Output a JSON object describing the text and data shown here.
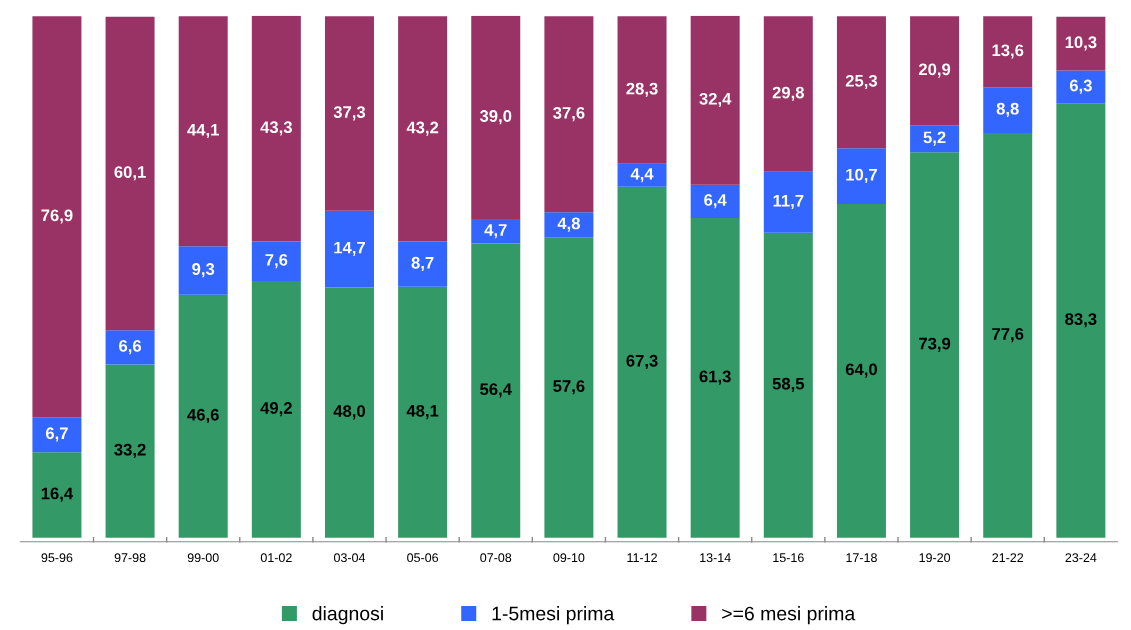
{
  "chart_data": {
    "type": "bar",
    "stacked": true,
    "legend": "bottom",
    "categories": [
      "95-96",
      "97-98",
      "99-00",
      "01-02",
      "03-04",
      "05-06",
      "07-08",
      "09-10",
      "11-12",
      "13-14",
      "15-16",
      "17-18",
      "19-20",
      "21-22",
      "23-24"
    ],
    "series": [
      {
        "name": "diagnosi",
        "color": "#339966",
        "values": [
          16.4,
          33.2,
          46.6,
          49.2,
          48.0,
          48.1,
          56.4,
          57.6,
          67.3,
          61.3,
          58.5,
          64.0,
          73.9,
          77.6,
          83.3
        ],
        "value_labels": [
          "16,4",
          "33,2",
          "46,6",
          "49,2",
          "48,0",
          "48,1",
          "56,4",
          "57,6",
          "67,3",
          "61,3",
          "58,5",
          "64,0",
          "73,9",
          "77,6",
          "83,3"
        ]
      },
      {
        "name": "1-5mesi prima",
        "color": "#3366ff",
        "values": [
          6.7,
          6.6,
          9.3,
          7.6,
          14.7,
          8.7,
          4.7,
          4.8,
          4.4,
          6.4,
          11.7,
          10.7,
          5.2,
          8.8,
          6.3
        ],
        "value_labels": [
          "6,7",
          "6,6",
          "9,3",
          "7,6",
          "14,7",
          "8,7",
          "4,7",
          "4,8",
          "4,4",
          "6,4",
          "11,7",
          "10,7",
          "5,2",
          "8,8",
          "6,3"
        ]
      },
      {
        "name": ">=6 mesi prima",
        "color": "#993366",
        "values": [
          76.9,
          60.1,
          44.1,
          43.3,
          37.3,
          43.2,
          39.0,
          37.6,
          28.3,
          32.4,
          29.8,
          25.3,
          20.9,
          13.6,
          10.3
        ],
        "value_labels": [
          "76,9",
          "60,1",
          "44,1",
          "43,3",
          "37,3",
          "43,2",
          "39,0",
          "37,6",
          "28,3",
          "32,4",
          "29,8",
          "25,3",
          "20,9",
          "13,6",
          "10,3"
        ]
      }
    ]
  }
}
